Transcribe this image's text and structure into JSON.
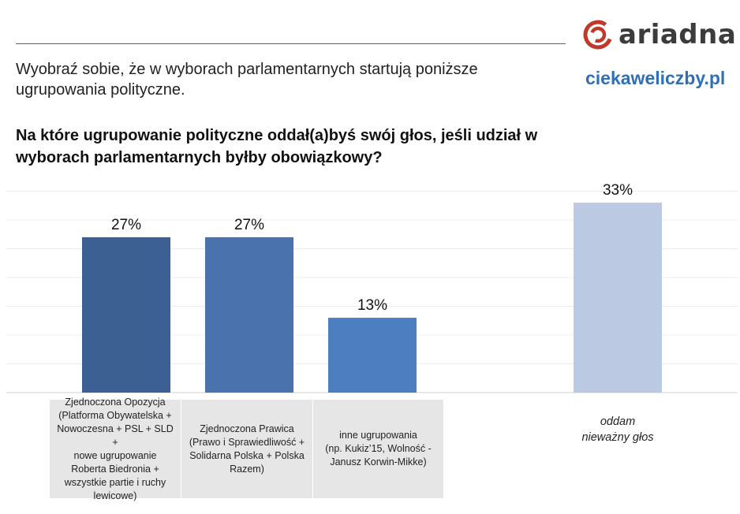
{
  "header": {
    "logo_text": "ariadna",
    "site": "ciekaweliczby.pl"
  },
  "intro_text": "Wyobraź sobie, że w wyborach parlamentarnych startują poniższe ugrupowania polityczne.",
  "question_text": "Na które ugrupowanie polityczne oddał(a)byś swój głos, jeśli udział w wyborach parlamentarnych byłby obowiązkowy?",
  "colors": {
    "accent_red": "#c0392b",
    "site_blue": "#2f6fb7",
    "bars": [
      "#3d6093",
      "#4a72ad",
      "#4d7fc0",
      "#bcc9e2"
    ]
  },
  "chart_data": {
    "type": "bar",
    "categories": [
      "Zjednoczona Opozycja (Platforma Obywatelska + Nowoczesna + PSL + SLD + nowe ugrupowanie Roberta Biedronia + wszystkie partie i ruchy lewicowe)",
      "Zjednoczona Prawica (Prawo i Sprawiedliwość + Solidarna Polska + Polska Razem)",
      "inne ugrupowania (np. Kukiz’15, Wolność - Janusz Korwin-Mikke)",
      "oddam nieważny głos"
    ],
    "category_lines": [
      [
        "Zjednoczona Opozycja",
        "(Platforma Obywatelska +",
        "Nowoczesna + PSL + SLD +",
        "nowe ugrupowanie",
        "Roberta Biedronia +",
        "wszystkie partie i ruchy",
        "lewicowe)"
      ],
      [
        "Zjednoczona Prawica",
        "(Prawo i Sprawiedliwość +",
        "Solidarna Polska + Polska",
        "Razem)"
      ],
      [
        "inne ugrupowania",
        "(np. Kukiz’15, Wolność -",
        "Janusz Korwin-Mikke)"
      ],
      [
        "oddam",
        "nieważny głos"
      ]
    ],
    "values": [
      27,
      27,
      13,
      33
    ],
    "data_labels": [
      "27%",
      "27%",
      "13%",
      "33%"
    ],
    "ylim": [
      0,
      40
    ],
    "grid": true,
    "title": "",
    "xlabel": "",
    "ylabel": ""
  }
}
